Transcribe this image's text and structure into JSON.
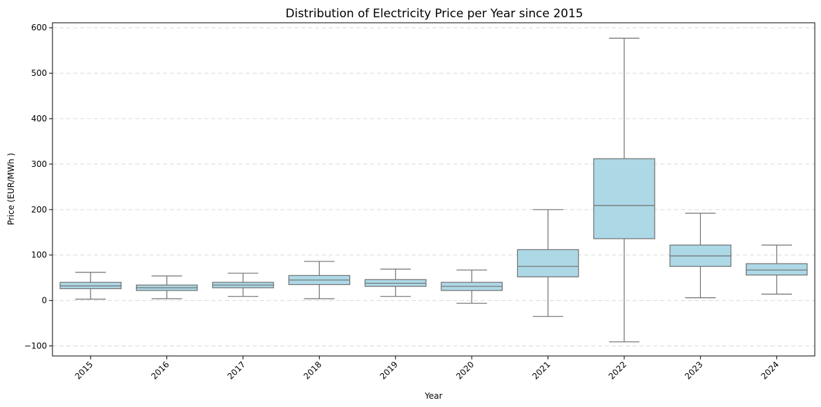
{
  "chart_data": {
    "type": "box",
    "title": "Distribution of Electricity Price per Year since 2015",
    "xlabel": "Year",
    "ylabel": "Price (EUR/MWh  )",
    "ylim": [
      -122,
      611
    ],
    "yticks": [
      -100,
      0,
      100,
      200,
      300,
      400,
      500,
      600
    ],
    "ytick_labels": [
      "−100",
      "0",
      "100",
      "200",
      "300",
      "400",
      "500",
      "600"
    ],
    "grid": "y dashed",
    "x_tick_rotation": 45,
    "colors": {
      "box_fill": "#add8e6",
      "box_stroke": "#707070",
      "grid": "#d9d9d9"
    },
    "boxes": [
      {
        "category": "2015",
        "whisker_low": 3,
        "q1": 26,
        "median": 32,
        "q3": 40,
        "whisker_high": 62
      },
      {
        "category": "2016",
        "whisker_low": 4,
        "q1": 22,
        "median": 28,
        "q3": 34,
        "whisker_high": 54
      },
      {
        "category": "2017",
        "whisker_low": 9,
        "q1": 28,
        "median": 34,
        "q3": 40,
        "whisker_high": 60
      },
      {
        "category": "2018",
        "whisker_low": 4,
        "q1": 35,
        "median": 45,
        "q3": 55,
        "whisker_high": 86
      },
      {
        "category": "2019",
        "whisker_low": 9,
        "q1": 31,
        "median": 38,
        "q3": 46,
        "whisker_high": 69
      },
      {
        "category": "2020",
        "whisker_low": -6,
        "q1": 22,
        "median": 31,
        "q3": 40,
        "whisker_high": 67
      },
      {
        "category": "2021",
        "whisker_low": -35,
        "q1": 52,
        "median": 75,
        "q3": 112,
        "whisker_high": 200
      },
      {
        "category": "2022",
        "whisker_low": -91,
        "q1": 136,
        "median": 209,
        "q3": 312,
        "whisker_high": 577
      },
      {
        "category": "2023",
        "whisker_low": 6,
        "q1": 75,
        "median": 98,
        "q3": 122,
        "whisker_high": 192
      },
      {
        "category": "2024",
        "whisker_low": 14,
        "q1": 56,
        "median": 67,
        "q3": 81,
        "whisker_high": 122
      }
    ]
  }
}
